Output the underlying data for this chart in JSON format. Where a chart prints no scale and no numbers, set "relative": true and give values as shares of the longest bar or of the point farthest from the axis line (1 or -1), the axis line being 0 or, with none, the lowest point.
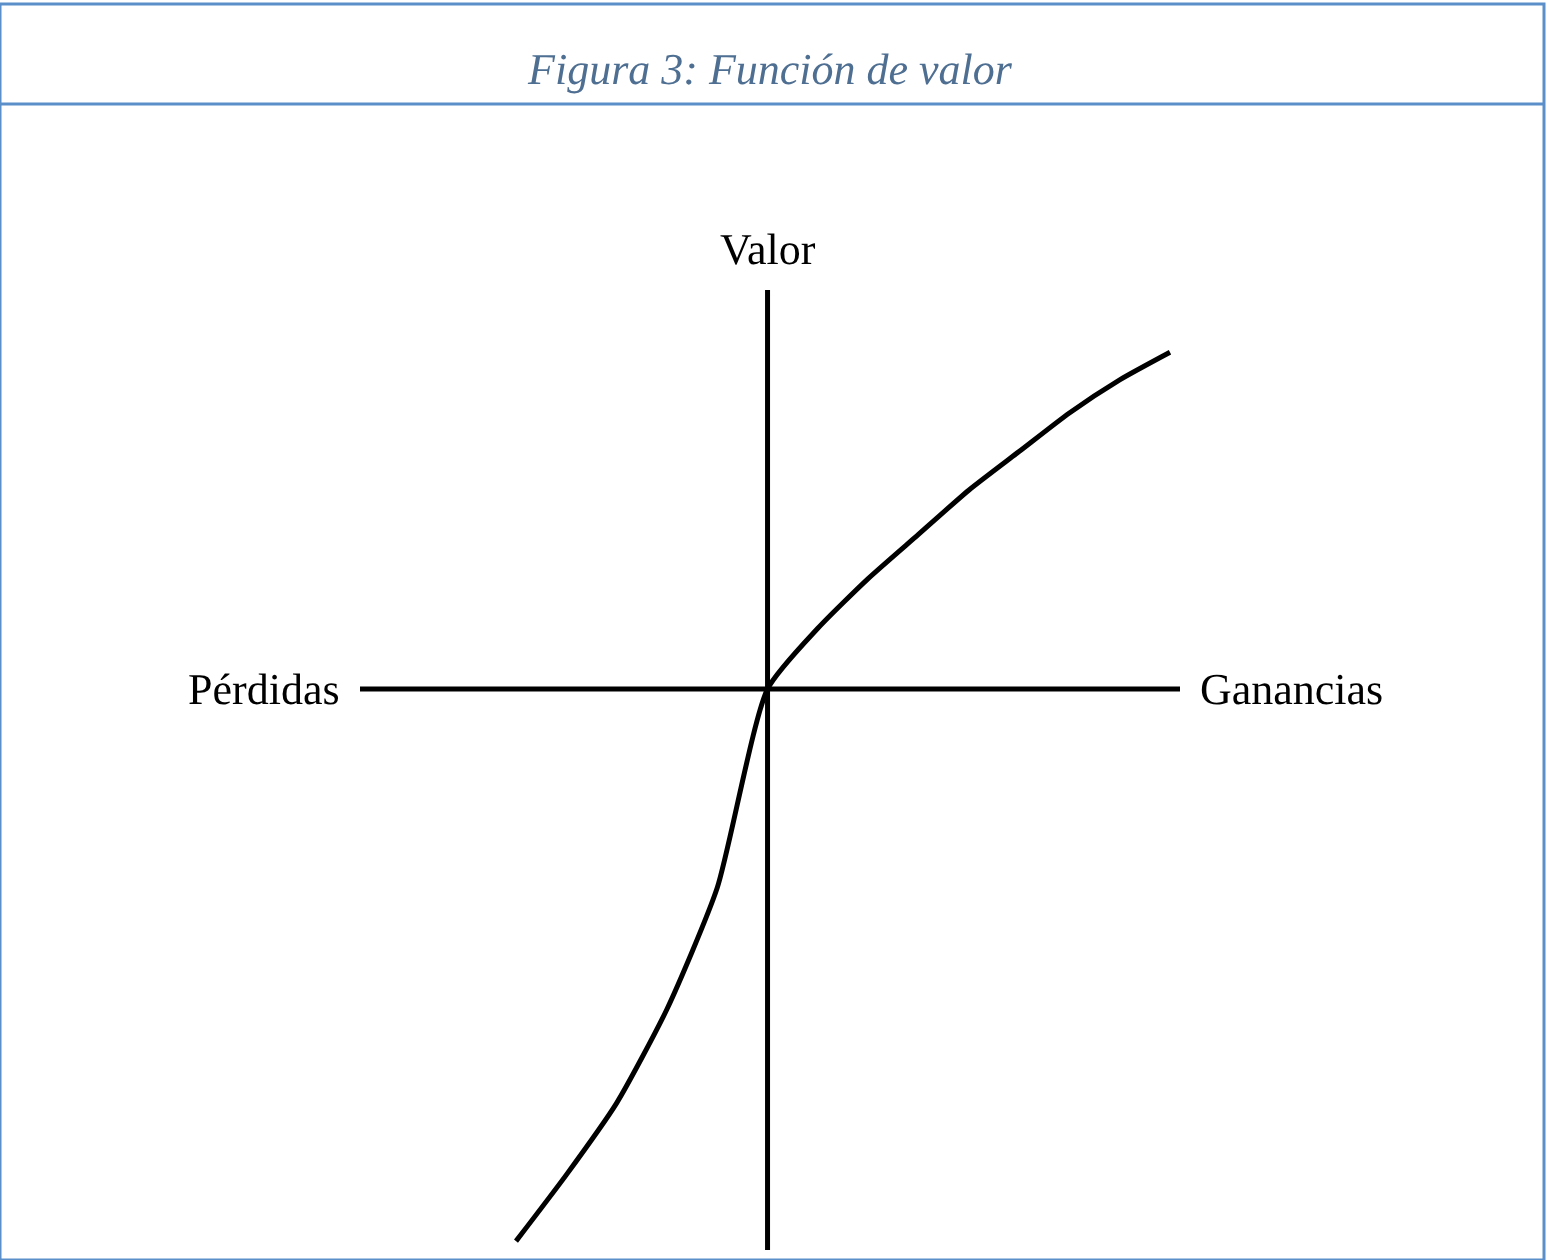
{
  "chart_data": {
    "type": "line",
    "title": "Figura 3: Función de valor",
    "ylabel": "Valor",
    "annotations": [
      "Pérdidas",
      "Ganancias"
    ],
    "relative": true,
    "color": "#000000",
    "categories": [
      null,
      null,
      null,
      null,
      null,
      null,
      null,
      null,
      null,
      null,
      null,
      null,
      null,
      null
    ],
    "values": [
      -1,
      -0.88,
      -0.75,
      -0.58,
      -0.36,
      0,
      0.11,
      0.2,
      0.28,
      0.36,
      0.43,
      0.5,
      0.56,
      0.61
    ]
  }
}
